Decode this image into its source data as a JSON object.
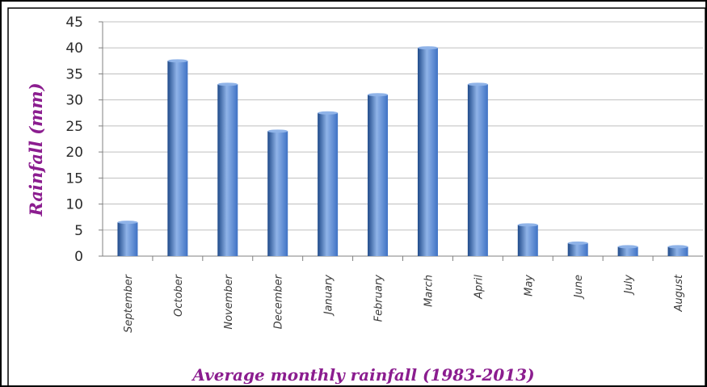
{
  "chart_data": {
    "type": "bar",
    "title": "",
    "xlabel": "Average monthly rainfall (1983-2013)",
    "ylabel": "Rainfall (mm)",
    "categories": [
      "September",
      "October",
      "November",
      "December",
      "January",
      "February",
      "March",
      "April",
      "May",
      "June",
      "July",
      "August"
    ],
    "values": [
      6.5,
      37.5,
      33,
      24,
      27.5,
      31,
      40,
      33,
      6,
      2.5,
      1.8,
      1.8
    ],
    "ylim": [
      0,
      45
    ],
    "yticks": [
      "0",
      "5",
      "10",
      "15",
      "20",
      "25",
      "30",
      "35",
      "40",
      "45"
    ],
    "grid": true,
    "legend": "none",
    "colors": {
      "bar": "#3f72c4",
      "bar_dark": "#1f4a8a",
      "bar_light": "#8fb3e8",
      "grid": "#bfbfbf",
      "axis_title": "#8b1d8f",
      "frame": "#000000"
    }
  }
}
